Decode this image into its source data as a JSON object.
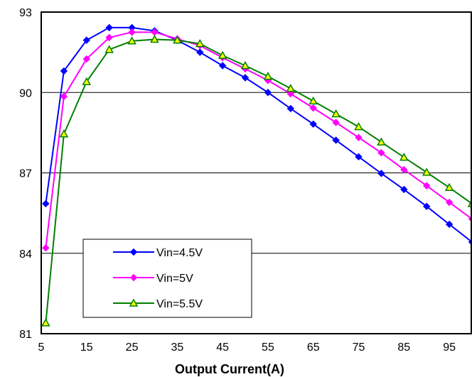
{
  "chart_data": {
    "type": "line",
    "title": "",
    "xlabel": "Output Current(A)",
    "ylabel": "",
    "xlim": [
      5,
      100
    ],
    "ylim": [
      81,
      93
    ],
    "x_ticks": [
      "5",
      "15",
      "25",
      "35",
      "45",
      "55",
      "65",
      "75",
      "85",
      "95"
    ],
    "x_tick_values": [
      5,
      15,
      25,
      35,
      45,
      55,
      65,
      75,
      85,
      95
    ],
    "y_ticks": [
      "81",
      "84",
      "87",
      "90",
      "93"
    ],
    "y_tick_values": [
      81,
      84,
      87,
      90,
      93
    ],
    "grid": "horizontal",
    "legend_position": "lower-left",
    "x": [
      6,
      10,
      15,
      20,
      25,
      30,
      35,
      40,
      45,
      50,
      55,
      60,
      65,
      70,
      75,
      80,
      85,
      90,
      95,
      100
    ],
    "series": [
      {
        "name": "Vin=4.5V",
        "color": "#0000FF",
        "marker": "diamond",
        "values": [
          85.85,
          90.8,
          91.95,
          92.42,
          92.42,
          92.3,
          91.95,
          91.5,
          91.0,
          90.55,
          90.0,
          89.4,
          88.82,
          88.22,
          87.6,
          86.98,
          86.38,
          85.75,
          85.08,
          84.42
        ]
      },
      {
        "name": "Vin=5V",
        "color": "#FF00FF",
        "marker": "diamond",
        "values": [
          84.2,
          89.85,
          91.25,
          92.05,
          92.25,
          92.25,
          92.0,
          91.75,
          91.3,
          90.88,
          90.45,
          89.95,
          89.42,
          88.88,
          88.32,
          87.75,
          87.12,
          86.52,
          85.9,
          85.28
        ]
      },
      {
        "name": "Vin=5.5V",
        "color": "#008000",
        "marker": "triangle",
        "values": [
          81.4,
          88.45,
          90.4,
          91.6,
          91.92,
          91.98,
          91.95,
          91.82,
          91.38,
          91.0,
          90.6,
          90.15,
          89.68,
          89.2,
          88.72,
          88.15,
          87.58,
          87.02,
          86.45,
          85.85
        ]
      }
    ]
  }
}
